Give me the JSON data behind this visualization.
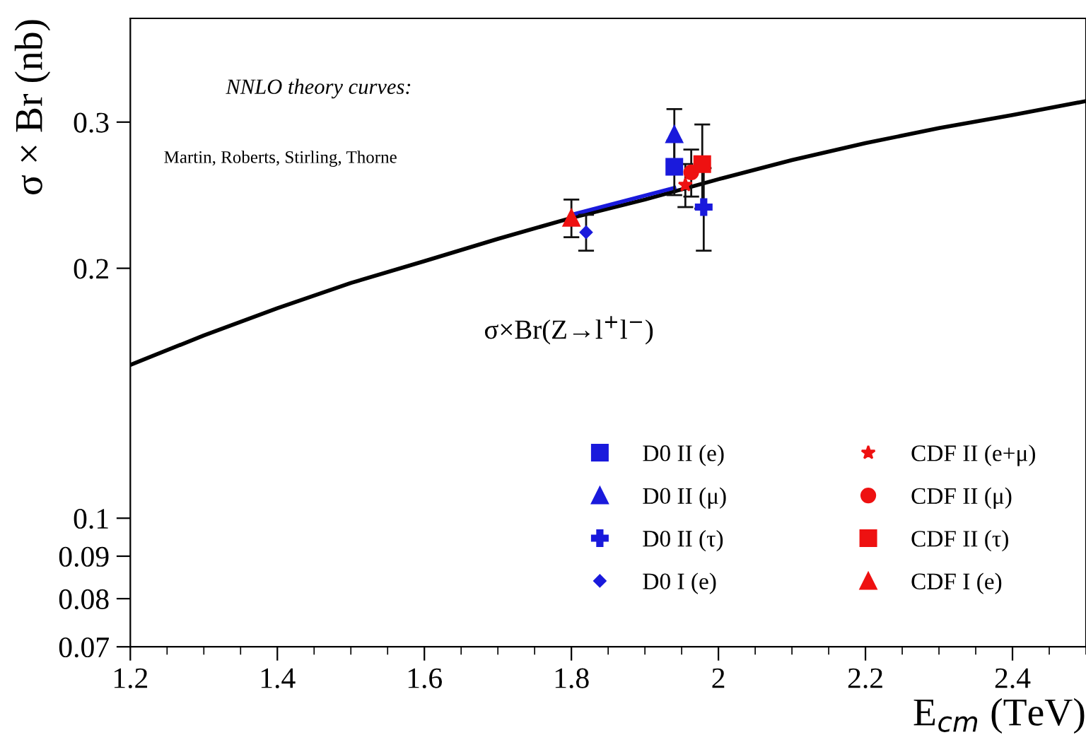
{
  "chart_data": {
    "type": "scatter",
    "xlabel": "E$_{cm}$ (TeV)",
    "ylabel": "σ × Br (nb)",
    "log": "y",
    "xlim": [
      1.2,
      2.5
    ],
    "xticks": [
      1.2,
      1.4,
      1.6,
      1.8,
      {
        "value": 2.0,
        "label": "2"
      },
      2.2,
      2.4
    ],
    "ylim": [
      0.07,
      0.4
    ],
    "yticks": [
      0.07,
      0.08,
      0.09,
      0.1,
      0.2,
      0.3
    ],
    "grid": false,
    "legend": "bottom right",
    "annotations": [
      "NNLO theory curves:",
      "Martin, Roberts, Stirling, Thorne",
      "σ×Br(Z→l$^{+}$l$^{−}$)"
    ],
    "series": [
      {
        "type": "line",
        "color": "#000000",
        "marker": "none",
        "x": [
          1.2,
          1.3,
          1.4,
          1.5,
          1.6,
          1.7,
          1.8,
          1.9,
          2.0,
          2.1,
          2.2,
          2.3,
          2.4,
          2.5
        ],
        "values": [
          0.153,
          0.166,
          0.179,
          0.192,
          0.204,
          0.217,
          0.23,
          0.242,
          0.256,
          0.27,
          0.283,
          0.295,
          0.306,
          0.318
        ]
      },
      {
        "type": "line",
        "color": "#1a1adc",
        "marker": "none",
        "x": [
          1.8,
          1.94
        ],
        "values": [
          0.232,
          0.25
        ]
      },
      {
        "name": "D0 II (e)",
        "color": "#1a1adc",
        "marker": "square",
        "x": [
          1.94
        ],
        "values": [
          0.265
        ],
        "errors": [
          0.02
        ]
      },
      {
        "name": "D0 II (μ)",
        "color": "#1a1adc",
        "marker": "triangle",
        "x": [
          1.94
        ],
        "values": [
          0.29
        ],
        "errors": [
          0.021
        ]
      },
      {
        "name": "D0 II (τ)",
        "color": "#1a1adc",
        "marker": "cross",
        "x": [
          1.98
        ],
        "values": [
          0.237
        ],
        "errors": [
          0.027
        ]
      },
      {
        "name": "D0 I (e)",
        "color": "#1a1adc",
        "marker": "diamond",
        "x": [
          1.82
        ],
        "values": [
          0.221
        ],
        "errors": [
          0.011
        ]
      },
      {
        "name": "CDF II (e+μ)",
        "color": "#ee1111",
        "marker": "star",
        "x": [
          1.955
        ],
        "values": [
          0.252
        ],
        "errors": [
          0.015
        ]
      },
      {
        "name": "CDF II (μ)",
        "color": "#ee1111",
        "marker": "circle",
        "x": [
          1.963
        ],
        "values": [
          0.261
        ],
        "errors": [
          0.017
        ]
      },
      {
        "name": "CDF II (τ)",
        "color": "#ee1111",
        "marker": "square",
        "x": [
          1.978
        ],
        "values": [
          0.267
        ],
        "errors": [
          0.031
        ]
      },
      {
        "name": "CDF I (e)",
        "color": "#ee1111",
        "marker": "triangle",
        "x": [
          1.8
        ],
        "values": [
          0.23
        ],
        "errors": [
          0.012
        ]
      }
    ]
  }
}
